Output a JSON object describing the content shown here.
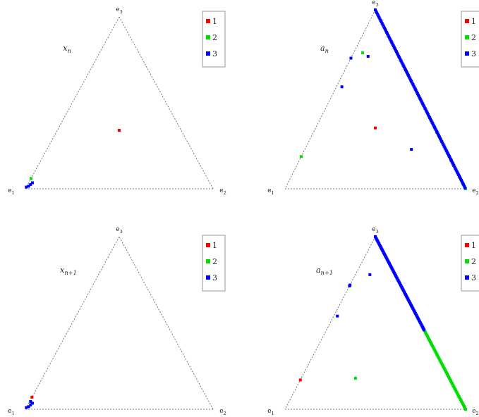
{
  "chart_data": [
    {
      "type": "scatter",
      "title": "",
      "panel_label": "x_n",
      "vertex_labels": {
        "left": "e_1",
        "right": "e_2",
        "top": "e_3"
      },
      "coordinates": "barycentric (share of e_1, e_2, e_3)",
      "grid": false,
      "legend_position": "top-right",
      "series": [
        {
          "name": "1",
          "color": "#ff0000",
          "points": [
            [
              0.33,
              0.33,
              0.34
            ]
          ]
        },
        {
          "name": "2",
          "color": "#00dd00",
          "points": [
            [
              0.94,
              0.0,
              0.06
            ]
          ]
        },
        {
          "name": "3",
          "color": "#0000ff",
          "points": [
            [
              0.99,
              0.0,
              0.01
            ],
            [
              0.975,
              0.01,
              0.015
            ],
            [
              0.96,
              0.015,
              0.025
            ],
            [
              0.945,
              0.02,
              0.035
            ]
          ]
        }
      ]
    },
    {
      "type": "scatter",
      "title": "",
      "panel_label": "a_n",
      "vertex_labels": {
        "left": "e_1",
        "right": "e_2",
        "top": "e_3"
      },
      "coordinates": "barycentric (share of e_1, e_2, e_3)",
      "grid": false,
      "legend_position": "top-right",
      "series": [
        {
          "name": "1",
          "color": "#ff0000",
          "points": [
            [
              0.33,
              0.33,
              0.34
            ]
          ]
        },
        {
          "name": "2",
          "color": "#00dd00",
          "points": [
            [
              0.82,
              0.0,
              0.18
            ],
            [
              0.19,
              0.05,
              0.76
            ],
            [
              0.0,
              0.8,
              0.2
            ],
            [
              0.0,
              0.86,
              0.14
            ],
            [
              0.0,
              0.91,
              0.09
            ],
            [
              0.0,
              0.97,
              0.03
            ],
            [
              0.0,
              1.0,
              0.0
            ],
            [
              0.0,
              0.7,
              0.3
            ],
            [
              0.0,
              0.4,
              0.6
            ]
          ],
          "line": {
            "from": [
              0.0,
              0.18,
              0.82
            ],
            "to": [
              0.0,
              1.0,
              0.0
            ],
            "count": 32
          }
        },
        {
          "name": "3",
          "color": "#0000ff",
          "points": [
            [
              0.17,
              0.09,
              0.74
            ],
            [
              0.27,
              0.0,
              0.73
            ],
            [
              0.4,
              0.03,
              0.57
            ],
            [
              0.19,
              0.59,
              0.22
            ],
            [
              0.0,
              0.68,
              0.32
            ],
            [
              0.0,
              0.84,
              0.16
            ],
            [
              0.0,
              0.93,
              0.07
            ]
          ],
          "line": {
            "from": [
              0.0,
              0.0,
              1.0
            ],
            "to": [
              0.0,
              0.995,
              0.005
            ],
            "count": 120
          }
        }
      ]
    },
    {
      "type": "scatter",
      "title": "",
      "panel_label": "x_{n+1}",
      "vertex_labels": {
        "left": "e_1",
        "right": "e_2",
        "top": "e_3"
      },
      "coordinates": "barycentric (share of e_1, e_2, e_3)",
      "grid": false,
      "legend_position": "top-right",
      "series": [
        {
          "name": "1",
          "color": "#ff0000",
          "points": [
            [
              0.93,
              0.0,
              0.07
            ]
          ]
        },
        {
          "name": "2",
          "color": "#00dd00",
          "points": [
            [
              0.95,
              0.01,
              0.04
            ]
          ]
        },
        {
          "name": "3",
          "color": "#0000ff",
          "points": [
            [
              0.99,
              0.0,
              0.01
            ],
            [
              0.975,
              0.01,
              0.015
            ],
            [
              0.96,
              0.015,
              0.025
            ],
            [
              0.945,
              0.02,
              0.035
            ],
            [
              0.95,
              0.005,
              0.045
            ]
          ]
        }
      ]
    },
    {
      "type": "scatter",
      "title": "",
      "panel_label": "a_{n+1}",
      "vertex_labels": {
        "left": "e_1",
        "right": "e_2",
        "top": "e_3"
      },
      "coordinates": "barycentric (share of e_1, e_2, e_3)",
      "grid": false,
      "legend_position": "top-right",
      "series": [
        {
          "name": "1",
          "color": "#ff0000",
          "points": [
            [
              0.83,
              0.0,
              0.17
            ]
          ]
        },
        {
          "name": "2",
          "color": "#00dd00",
          "points": [
            [
              0.52,
              0.3,
              0.18
            ],
            [
              0.0,
              0.52,
              0.48
            ],
            [
              0.0,
              0.4,
              0.6
            ]
          ],
          "line": {
            "from": [
              0.0,
              0.52,
              0.48
            ],
            "to": [
              0.0,
              1.0,
              0.0
            ],
            "count": 60
          }
        },
        {
          "name": "3",
          "color": "#0000ff",
          "points": [
            [
              0.14,
              0.08,
              0.78
            ],
            [
              0.28,
              0.0,
              0.72
            ],
            [
              0.28,
              0.0,
              0.7
            ],
            [
              0.44,
              0.02,
              0.54
            ],
            [
              0.0,
              0.3,
              0.7
            ]
          ],
          "line": {
            "from": [
              0.0,
              0.0,
              1.0
            ],
            "to": [
              0.0,
              0.54,
              0.46
            ],
            "count": 80
          }
        }
      ]
    }
  ]
}
